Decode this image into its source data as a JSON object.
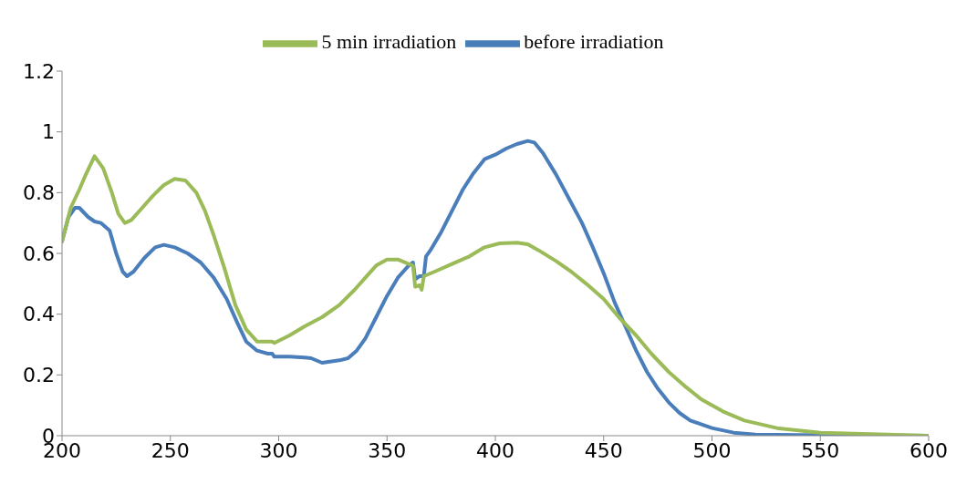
{
  "chart_data": {
    "type": "line",
    "xlim": [
      200,
      600
    ],
    "xticks": [
      200,
      250,
      300,
      350,
      400,
      450,
      500,
      550,
      600
    ],
    "ylim": [
      0,
      1.2
    ],
    "yticks": [
      0,
      0.2,
      0.4,
      0.6,
      0.8,
      1,
      1.2
    ],
    "grid": false,
    "legend": "top",
    "marker": "none",
    "line_style": "solid",
    "series": [
      {
        "name": "before irradiation",
        "color": "#4a7ebb",
        "x": [
          200,
          203,
          206,
          208,
          212,
          215,
          218,
          222,
          225,
          228,
          230,
          233,
          238,
          243,
          247,
          252,
          258,
          264,
          270,
          276,
          281,
          285,
          290,
          295,
          297,
          298,
          305,
          312,
          315,
          320,
          328,
          332,
          336,
          340,
          345,
          350,
          355,
          360,
          362,
          363,
          365,
          367,
          368,
          370,
          375,
          380,
          385,
          390,
          395,
          400,
          405,
          410,
          415,
          418,
          422,
          428,
          434,
          440,
          445,
          450,
          455,
          460,
          465,
          470,
          475,
          480,
          485,
          490,
          500,
          510,
          520,
          540,
          600
        ],
        "values": [
          0.64,
          0.72,
          0.75,
          0.75,
          0.72,
          0.705,
          0.7,
          0.675,
          0.6,
          0.54,
          0.525,
          0.54,
          0.585,
          0.62,
          0.628,
          0.62,
          0.6,
          0.57,
          0.52,
          0.45,
          0.37,
          0.31,
          0.28,
          0.27,
          0.27,
          0.26,
          0.26,
          0.257,
          0.255,
          0.24,
          0.248,
          0.255,
          0.28,
          0.32,
          0.39,
          0.46,
          0.52,
          0.56,
          0.57,
          0.515,
          0.525,
          0.525,
          0.59,
          0.61,
          0.67,
          0.74,
          0.81,
          0.865,
          0.91,
          0.925,
          0.945,
          0.96,
          0.97,
          0.965,
          0.93,
          0.86,
          0.78,
          0.7,
          0.62,
          0.535,
          0.44,
          0.36,
          0.28,
          0.21,
          0.155,
          0.11,
          0.075,
          0.05,
          0.025,
          0.01,
          0.004,
          0.002,
          0
        ]
      },
      {
        "name": "5 min irradiation",
        "color": "#9bbb59",
        "x": [
          200,
          204,
          208,
          211,
          215,
          219,
          223,
          226,
          229,
          232,
          237,
          242,
          247,
          252,
          257,
          262,
          266,
          270,
          275,
          280,
          285,
          290,
          295,
          297,
          298,
          305,
          312,
          320,
          328,
          335,
          340,
          345,
          350,
          355,
          360,
          362,
          363,
          365,
          366,
          367,
          372,
          380,
          388,
          395,
          402,
          410,
          415,
          420,
          428,
          435,
          442,
          450,
          457,
          465,
          472,
          480,
          488,
          495,
          505,
          515,
          530,
          550,
          600
        ],
        "values": [
          0.64,
          0.75,
          0.81,
          0.86,
          0.92,
          0.88,
          0.8,
          0.73,
          0.7,
          0.71,
          0.75,
          0.79,
          0.825,
          0.845,
          0.84,
          0.8,
          0.74,
          0.66,
          0.55,
          0.43,
          0.35,
          0.31,
          0.31,
          0.31,
          0.305,
          0.33,
          0.36,
          0.39,
          0.43,
          0.48,
          0.52,
          0.56,
          0.58,
          0.58,
          0.565,
          0.56,
          0.49,
          0.495,
          0.48,
          0.525,
          0.54,
          0.565,
          0.59,
          0.62,
          0.633,
          0.635,
          0.63,
          0.61,
          0.575,
          0.54,
          0.5,
          0.45,
          0.39,
          0.33,
          0.27,
          0.21,
          0.16,
          0.12,
          0.08,
          0.05,
          0.025,
          0.01,
          0
        ]
      }
    ]
  }
}
